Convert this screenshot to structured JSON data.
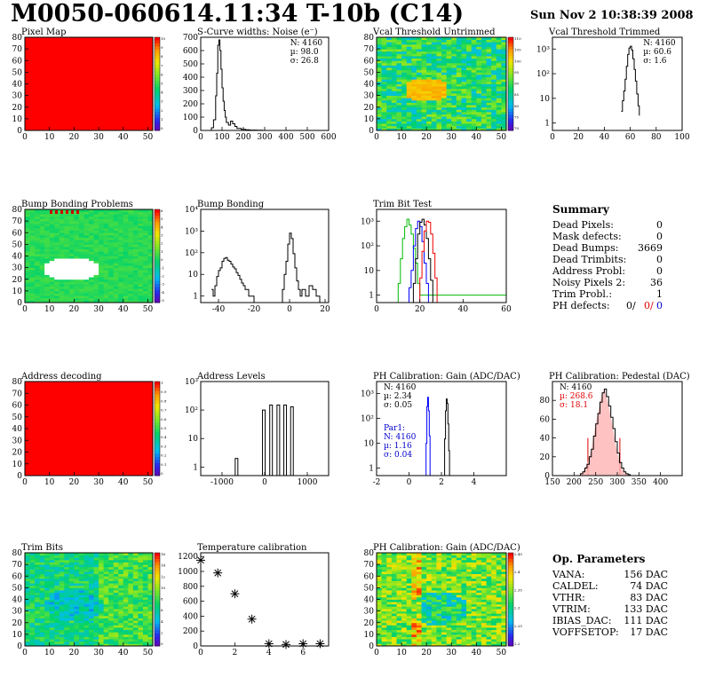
{
  "page": {
    "title": "M0050-060614.11:34 T-10b (C14)",
    "timestamp": "Sun Nov  2 10:38:39 2008"
  },
  "summary": {
    "title": "Summary",
    "rows": [
      {
        "label": "Dead Pixels:",
        "value": "0"
      },
      {
        "label": "Mask defects:",
        "value": "0"
      },
      {
        "label": "Dead Bumps:",
        "value": "3669"
      },
      {
        "label": "Dead Trimbits:",
        "value": "0"
      },
      {
        "label": "Address Probl:",
        "value": "0"
      },
      {
        "label": "Noisy Pixels 2:",
        "value": "36"
      },
      {
        "label": "Trim Probl.:",
        "value": "1"
      }
    ],
    "ph_label": "PH defects:",
    "ph_values": [
      "0/",
      "0/",
      "0"
    ],
    "ph_colors": [
      "#000000",
      "#e00000",
      "#0000cc"
    ]
  },
  "op_params": {
    "title": "Op. Parameters",
    "rows": [
      {
        "label": "VANA:",
        "value": "156 DAC"
      },
      {
        "label": "CALDEL:",
        "value": "74 DAC"
      },
      {
        "label": "VTHR:",
        "value": "83 DAC"
      },
      {
        "label": "VTRIM:",
        "value": "133 DAC"
      },
      {
        "label": "IBIAS_DAC:",
        "value": "111 DAC"
      },
      {
        "label": "VOFFSETOP:",
        "value": "17 DAC"
      }
    ]
  },
  "chart_data": [
    {
      "type": "heatmap",
      "name": "pixel-map",
      "title": "Pixel Map",
      "xlim": [
        0,
        52
      ],
      "ylim": [
        0,
        80
      ],
      "xticks": [
        0,
        10,
        20,
        30,
        40,
        50
      ],
      "yticks": [
        0,
        10,
        20,
        30,
        40,
        50,
        60,
        70,
        80
      ],
      "pattern": "uniform",
      "fill_level": 1.0,
      "colorbar_ticks": [
        "10",
        "9",
        "8",
        "7",
        "6",
        "5",
        "4",
        "3",
        "2",
        "1",
        "0"
      ]
    },
    {
      "type": "line",
      "name": "noise",
      "title": "S-Curve widths: Noise (e⁻)",
      "xlim": [
        0,
        600
      ],
      "ylim": [
        0,
        700
      ],
      "xticks": [
        0,
        100,
        200,
        300,
        400,
        500,
        600
      ],
      "yticks": [
        0,
        100,
        200,
        300,
        400,
        500,
        600,
        700
      ],
      "stats": [
        "N: 4160",
        "µ: 98.0",
        "σ: 26.8"
      ],
      "series": [
        {
          "color": "#000000",
          "x": [
            40,
            50,
            60,
            70,
            75,
            80,
            85,
            90,
            95,
            100,
            105,
            110,
            115,
            120,
            130,
            140,
            150,
            160,
            170,
            190,
            210,
            230,
            260,
            290,
            600
          ],
          "y": [
            0,
            20,
            80,
            260,
            430,
            640,
            680,
            600,
            460,
            320,
            220,
            150,
            100,
            60,
            40,
            70,
            50,
            30,
            15,
            8,
            5,
            3,
            2,
            0,
            0
          ]
        }
      ]
    },
    {
      "type": "heatmap",
      "name": "vcal-untrimmed",
      "title": "Vcal Threshold Untrimmed",
      "xlim": [
        0,
        52
      ],
      "ylim": [
        0,
        80
      ],
      "xticks": [
        0,
        10,
        20,
        30,
        40,
        50
      ],
      "yticks": [
        0,
        10,
        20,
        30,
        40,
        50,
        60,
        70,
        80
      ],
      "pattern": "noise-blob",
      "colorbar_ticks": [
        "110",
        "105",
        "100",
        "95",
        "90",
        "85",
        "80",
        "75",
        "70"
      ]
    },
    {
      "type": "line",
      "name": "vcal-trimmed",
      "title": "Vcal Threshold Trimmed",
      "ylog": true,
      "xlim": [
        0,
        100
      ],
      "ylim": [
        0.5,
        3000
      ],
      "xticks": [
        0,
        20,
        40,
        60,
        80,
        100
      ],
      "yticks": [
        1,
        10,
        100,
        1000
      ],
      "ytick_labels": [
        "1",
        "10",
        "10²",
        "10³"
      ],
      "stats": [
        "N: 4160",
        "µ: 60.6",
        "σ:  1.6"
      ],
      "series": [
        {
          "color": "#000000",
          "x": [
            53,
            54,
            55,
            56,
            57,
            58,
            59,
            60,
            61,
            62,
            63,
            64,
            65,
            66,
            67
          ],
          "y": [
            3,
            8,
            20,
            60,
            200,
            600,
            1100,
            1300,
            900,
            400,
            150,
            50,
            15,
            5,
            2
          ]
        }
      ]
    },
    {
      "type": "heatmap",
      "name": "bump-bonding-problems",
      "title": "Bump Bonding Problems",
      "xlim": [
        0,
        52
      ],
      "ylim": [
        0,
        80
      ],
      "xticks": [
        0,
        10,
        20,
        30,
        40,
        50
      ],
      "yticks": [
        0,
        10,
        20,
        30,
        40,
        50,
        60,
        70,
        80
      ],
      "pattern": "green-hole",
      "colorbar_ticks": [
        "6",
        "5",
        "4",
        "3",
        "2",
        "1",
        "0",
        "-1",
        "-2",
        "-3",
        "-4",
        "-5"
      ]
    },
    {
      "type": "line",
      "name": "bump-bonding",
      "title": "Bump Bonding",
      "ylog": true,
      "xlim": [
        -50,
        22
      ],
      "ylim": [
        0.5,
        10000
      ],
      "xticks": [
        -40,
        -20,
        0,
        20
      ],
      "yticks": [
        1,
        10,
        100,
        1000,
        10000
      ],
      "ytick_labels": [
        "1",
        "10",
        "10²",
        "10³",
        "10⁴"
      ],
      "series": [
        {
          "color": "#000000",
          "x": [
            -44,
            -43,
            -42,
            -41,
            -40,
            -39,
            -38,
            -37,
            -36,
            -35,
            -34,
            -33,
            -32,
            -31,
            -30,
            -29,
            -28,
            -27,
            -26,
            -25,
            -24,
            -23,
            -22,
            -21,
            -20,
            -4,
            -3,
            -2,
            -1,
            0,
            1,
            2,
            3,
            4,
            5,
            6,
            7,
            9,
            11,
            13,
            15,
            17
          ],
          "y": [
            2,
            1,
            3,
            8,
            15,
            20,
            40,
            55,
            60,
            45,
            40,
            30,
            22,
            18,
            12,
            9,
            6,
            4,
            3,
            2,
            2,
            1,
            1,
            1,
            0.5,
            2,
            10,
            40,
            250,
            800,
            450,
            90,
            20,
            5,
            2,
            1,
            2,
            1,
            3,
            2,
            1,
            0.5
          ]
        }
      ]
    },
    {
      "type": "line",
      "name": "trim-bit-test",
      "title": "Trim Bit Test",
      "ylog": true,
      "xlim": [
        0,
        60
      ],
      "ylim": [
        0.5,
        3000
      ],
      "xticks": [
        0,
        20,
        40,
        60
      ],
      "yticks": [
        1,
        10,
        100,
        1000
      ],
      "ytick_labels": [
        "1",
        "10",
        "10²",
        "10³"
      ],
      "series": [
        {
          "color": "#00bb00",
          "x": [
            9,
            10,
            11,
            12,
            13,
            14,
            15,
            16,
            17,
            18,
            19,
            20,
            60
          ],
          "y": [
            0.5,
            3,
            30,
            200,
            600,
            1200,
            700,
            300,
            80,
            20,
            3,
            1,
            1
          ]
        },
        {
          "color": "#0000ff",
          "x": [
            14,
            15,
            16,
            17,
            18,
            19,
            20,
            21,
            22,
            23,
            24
          ],
          "y": [
            0.5,
            2,
            10,
            100,
            500,
            1000,
            600,
            150,
            20,
            3,
            0.5
          ]
        },
        {
          "color": "#000000",
          "x": [
            16,
            17,
            18,
            19,
            20,
            21,
            22,
            23,
            24,
            25,
            26
          ],
          "y": [
            0.5,
            3,
            30,
            300,
            900,
            1200,
            700,
            200,
            30,
            4,
            0.5
          ]
        },
        {
          "color": "#ee0000",
          "x": [
            19,
            20,
            21,
            22,
            23,
            24,
            25,
            26,
            27,
            28
          ],
          "y": [
            0.5,
            5,
            60,
            400,
            1000,
            900,
            300,
            50,
            5,
            0.5
          ]
        }
      ]
    },
    {
      "type": "heatmap",
      "name": "address-decoding",
      "title": "Address decoding",
      "xlim": [
        0,
        52
      ],
      "ylim": [
        0,
        80
      ],
      "xticks": [
        0,
        10,
        20,
        30,
        40,
        50
      ],
      "yticks": [
        0,
        10,
        20,
        30,
        40,
        50,
        60,
        70,
        80
      ],
      "pattern": "uniform",
      "fill_level": 1.0,
      "colorbar_ticks": [
        "1",
        "0.9",
        "0.8",
        "0.7",
        "0.6",
        "0.5",
        "0.4",
        "0.3",
        "0.2",
        "0.1",
        "0"
      ]
    },
    {
      "type": "bar",
      "name": "address-levels",
      "title": "Address Levels",
      "ylog": true,
      "xlim": [
        -1500,
        1500
      ],
      "ylim": [
        0.5,
        1000
      ],
      "xticks": [
        -1000,
        0,
        1000
      ],
      "yticks": [
        1,
        10,
        100,
        1000
      ],
      "ytick_labels": [
        "1",
        "10",
        "10²",
        "10³"
      ],
      "x": [
        -660,
        -20,
        150,
        320,
        480,
        640
      ],
      "values": [
        2,
        100,
        150,
        150,
        150,
        130
      ]
    },
    {
      "type": "line",
      "name": "ph-gain",
      "title": "PH Calibration: Gain (ADC/DAC)",
      "ylog": true,
      "xlim": [
        -2,
        6
      ],
      "ylim": [
        0.5,
        3000
      ],
      "xticks": [
        -2,
        0,
        2,
        4
      ],
      "yticks": [
        1,
        10,
        100,
        1000
      ],
      "ytick_labels": [
        "1",
        "10",
        "10²",
        "10³"
      ],
      "stats": [
        "N: 4160",
        "µ: 2.34",
        "σ: 0.05"
      ],
      "stats2_color": "#0000cc",
      "stats2": [
        "Par1:",
        "N: 4160",
        "µ: 1.16",
        "σ: 0.04"
      ],
      "series": [
        {
          "color": "#0000ff",
          "x": [
            1.0,
            1.05,
            1.1,
            1.15,
            1.2,
            1.25,
            1.3,
            6
          ],
          "y": [
            0.5,
            10,
            300,
            700,
            200,
            20,
            0.5,
            0.5
          ]
        },
        {
          "color": "#000000",
          "x": [
            2.15,
            2.2,
            2.25,
            2.3,
            2.35,
            2.4,
            2.45,
            2.5
          ],
          "y": [
            0.5,
            15,
            200,
            600,
            400,
            60,
            5,
            0.5
          ]
        }
      ]
    },
    {
      "type": "line",
      "name": "ph-pedestal",
      "title": "PH Calibration: Pedestal (DAC)",
      "xlim": [
        150,
        450
      ],
      "ylim": [
        0,
        100
      ],
      "xticks": [
        150,
        200,
        250,
        300,
        350,
        400
      ],
      "yticks": [
        0,
        20,
        40,
        60,
        80
      ],
      "xtick_labels": [
        "150",
        "200",
        "250",
        "300",
        "350",
        "400"
      ],
      "stats": [
        "N: 4160",
        "µ: 268.6",
        "σ: 18.1"
      ],
      "stats_colors": [
        "#000000",
        "#e00000",
        "#e00000"
      ],
      "cut_lines": [
        232,
        306
      ],
      "series": [
        {
          "color": "#000000",
          "x": [
            210,
            215,
            220,
            225,
            230,
            235,
            240,
            245,
            250,
            255,
            260,
            265,
            270,
            275,
            280,
            285,
            290,
            295,
            300,
            305,
            310,
            315,
            320,
            325,
            330
          ],
          "y": [
            0,
            2,
            4,
            8,
            12,
            20,
            28,
            42,
            55,
            66,
            78,
            88,
            92,
            84,
            74,
            62,
            50,
            36,
            24,
            14,
            8,
            4,
            2,
            1,
            0
          ]
        }
      ]
    },
    {
      "type": "heatmap",
      "name": "trim-bits",
      "title": "Trim Bits",
      "xlim": [
        0,
        52
      ],
      "ylim": [
        0,
        80
      ],
      "xticks": [
        0,
        10,
        20,
        30,
        40,
        50
      ],
      "yticks": [
        0,
        10,
        20,
        30,
        40,
        50,
        60,
        70,
        80
      ],
      "pattern": "trim",
      "colorbar_ticks": [
        "16",
        "14",
        "12",
        "10",
        "8",
        "6",
        "4",
        "2",
        "0"
      ]
    },
    {
      "type": "scatter",
      "name": "temperature-calibration",
      "title": "Temperature calibration",
      "xlim": [
        0,
        7.5
      ],
      "ylim": [
        0,
        1250
      ],
      "xticks": [
        0,
        2,
        4,
        6
      ],
      "yticks": [
        0,
        200,
        400,
        600,
        800,
        1000,
        1200
      ],
      "x": [
        0,
        1,
        2,
        3,
        4,
        5,
        6,
        7
      ],
      "y": [
        1150,
        980,
        700,
        360,
        30,
        20,
        30,
        30
      ]
    },
    {
      "type": "heatmap",
      "name": "ph-gain-map",
      "title": "PH Calibration: Gain (ADC/DAC)",
      "xlim": [
        0,
        52
      ],
      "ylim": [
        0,
        80
      ],
      "xticks": [
        0,
        10,
        20,
        30,
        40,
        50
      ],
      "yticks": [
        0,
        10,
        20,
        30,
        40,
        50,
        60,
        70,
        80
      ],
      "pattern": "gain-map",
      "colorbar_ticks": [
        "2.45",
        "2.4",
        "2.35",
        "2.3",
        "2.25",
        "2.2"
      ]
    }
  ]
}
